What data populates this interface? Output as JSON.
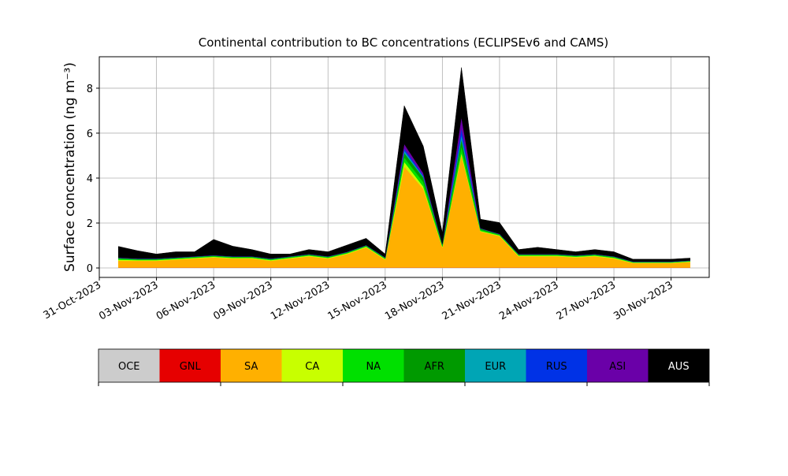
{
  "chart_data": {
    "type": "stacked_area",
    "title": "Continental contribution to BC concentrations (ECLIPSEv6 and CAMS)",
    "y_label": "Surface concentration (ng m⁻³)",
    "x": [
      "01-Nov-2023",
      "02-Nov-2023",
      "03-Nov-2023",
      "04-Nov-2023",
      "05-Nov-2023",
      "06-Nov-2023",
      "07-Nov-2023",
      "08-Nov-2023",
      "09-Nov-2023",
      "10-Nov-2023",
      "11-Nov-2023",
      "12-Nov-2023",
      "13-Nov-2023",
      "14-Nov-2023",
      "15-Nov-2023",
      "16-Nov-2023",
      "17-Nov-2023",
      "18-Nov-2023",
      "19-Nov-2023",
      "20-Nov-2023",
      "21-Nov-2023",
      "22-Nov-2023",
      "23-Nov-2023",
      "24-Nov-2023",
      "25-Nov-2023",
      "26-Nov-2023",
      "27-Nov-2023",
      "28-Nov-2023",
      "29-Nov-2023",
      "30-Nov-2023",
      "01-Dec-2023"
    ],
    "series": [
      {
        "name": "OCE",
        "color": "#cccccc",
        "values": [
          0.02,
          0.02,
          0.02,
          0.02,
          0.02,
          0.02,
          0.02,
          0.02,
          0.02,
          0.02,
          0.02,
          0.02,
          0.02,
          0.02,
          0.02,
          0.02,
          0.02,
          0.02,
          0.02,
          0.02,
          0.02,
          0.02,
          0.02,
          0.02,
          0.02,
          0.02,
          0.02,
          0.02,
          0.02,
          0.02,
          0.02
        ]
      },
      {
        "name": "GNL",
        "color": "#e60000",
        "values": [
          0,
          0,
          0,
          0,
          0,
          0,
          0,
          0,
          0,
          0,
          0,
          0,
          0,
          0,
          0,
          0,
          0,
          0,
          0,
          0,
          0,
          0,
          0,
          0,
          0,
          0,
          0,
          0,
          0,
          0,
          0
        ]
      },
      {
        "name": "SA",
        "color": "#ffb000",
        "values": [
          0.3,
          0.3,
          0.3,
          0.35,
          0.4,
          0.45,
          0.4,
          0.4,
          0.3,
          0.4,
          0.5,
          0.4,
          0.6,
          0.9,
          0.35,
          4.5,
          3.5,
          0.9,
          5.0,
          1.6,
          1.4,
          0.5,
          0.5,
          0.5,
          0.45,
          0.5,
          0.4,
          0.2,
          0.2,
          0.2,
          0.25
        ]
      },
      {
        "name": "CA",
        "color": "#c8ff00",
        "values": [
          0.05,
          0.03,
          0.03,
          0.03,
          0.03,
          0.03,
          0.03,
          0.03,
          0.03,
          0.03,
          0.03,
          0.03,
          0.03,
          0.03,
          0.03,
          0.2,
          0.1,
          0.03,
          0.1,
          0.03,
          0.03,
          0.03,
          0.03,
          0.03,
          0.03,
          0.03,
          0.03,
          0.02,
          0.02,
          0.02,
          0.02
        ]
      },
      {
        "name": "NA",
        "color": "#00e000",
        "values": [
          0.05,
          0.03,
          0.03,
          0.03,
          0.03,
          0.03,
          0.03,
          0.03,
          0.03,
          0.03,
          0.03,
          0.03,
          0.03,
          0.03,
          0.03,
          0.2,
          0.2,
          0.05,
          0.3,
          0.05,
          0.03,
          0.03,
          0.03,
          0.03,
          0.03,
          0.03,
          0.03,
          0.02,
          0.02,
          0.02,
          0.02
        ]
      },
      {
        "name": "AFR",
        "color": "#009a00",
        "values": [
          0.02,
          0.02,
          0.02,
          0.02,
          0.02,
          0.02,
          0.02,
          0.02,
          0.02,
          0.02,
          0.02,
          0.02,
          0.02,
          0.02,
          0.02,
          0.2,
          0.2,
          0.05,
          0.3,
          0.05,
          0.02,
          0.02,
          0.02,
          0.02,
          0.02,
          0.02,
          0.02,
          0.01,
          0.01,
          0.01,
          0.01
        ]
      },
      {
        "name": "EUR",
        "color": "#00a5b5",
        "values": [
          0.01,
          0.01,
          0.01,
          0.01,
          0.01,
          0.01,
          0.01,
          0.01,
          0.01,
          0.01,
          0.01,
          0.01,
          0.01,
          0.01,
          0.01,
          0.1,
          0.05,
          0.01,
          0.2,
          0.01,
          0.01,
          0.01,
          0.01,
          0.01,
          0.01,
          0.01,
          0.01,
          0.01,
          0.01,
          0.01,
          0.01
        ]
      },
      {
        "name": "RUS",
        "color": "#0032e6",
        "values": [
          0,
          0,
          0,
          0,
          0,
          0,
          0,
          0,
          0,
          0,
          0,
          0,
          0,
          0,
          0,
          0.1,
          0.05,
          0,
          0.3,
          0,
          0,
          0,
          0,
          0,
          0,
          0,
          0,
          0,
          0,
          0,
          0
        ]
      },
      {
        "name": "ASI",
        "color": "#6a00a8",
        "values": [
          0.01,
          0.01,
          0.01,
          0.01,
          0.01,
          0.01,
          0.01,
          0.01,
          0.01,
          0.01,
          0.01,
          0.01,
          0.01,
          0.01,
          0.01,
          0.2,
          0.1,
          0.01,
          0.5,
          0.01,
          0.01,
          0.01,
          0.01,
          0.01,
          0.01,
          0.01,
          0.01,
          0.01,
          0.01,
          0.01,
          0.01
        ]
      },
      {
        "name": "AUS",
        "color": "#000000",
        "values": [
          0.5,
          0.35,
          0.2,
          0.25,
          0.2,
          0.7,
          0.45,
          0.3,
          0.2,
          0.1,
          0.2,
          0.2,
          0.3,
          0.3,
          0.15,
          1.7,
          1.2,
          0.5,
          2.2,
          0.4,
          0.5,
          0.2,
          0.3,
          0.2,
          0.15,
          0.2,
          0.2,
          0.1,
          0.1,
          0.1,
          0.1
        ]
      }
    ],
    "xlim": [
      "31-Oct-2023",
      "02-Dec-2023"
    ],
    "xticks": [
      "31-Oct-2023",
      "03-Nov-2023",
      "06-Nov-2023",
      "09-Nov-2023",
      "12-Nov-2023",
      "15-Nov-2023",
      "18-Nov-2023",
      "21-Nov-2023",
      "24-Nov-2023",
      "27-Nov-2023",
      "30-Nov-2023"
    ],
    "ylim": [
      -0.42,
      9.4
    ],
    "yticks": [
      0,
      2,
      4,
      6,
      8
    ],
    "grid": true
  }
}
